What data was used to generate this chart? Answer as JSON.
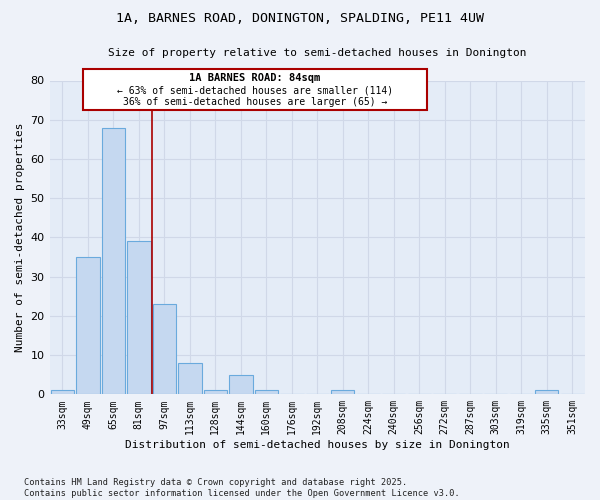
{
  "title1": "1A, BARNES ROAD, DONINGTON, SPALDING, PE11 4UW",
  "title2": "Size of property relative to semi-detached houses in Donington",
  "xlabel": "Distribution of semi-detached houses by size in Donington",
  "ylabel": "Number of semi-detached properties",
  "categories": [
    "33sqm",
    "49sqm",
    "65sqm",
    "81sqm",
    "97sqm",
    "113sqm",
    "128sqm",
    "144sqm",
    "160sqm",
    "176sqm",
    "192sqm",
    "208sqm",
    "224sqm",
    "240sqm",
    "256sqm",
    "272sqm",
    "287sqm",
    "303sqm",
    "319sqm",
    "335sqm",
    "351sqm"
  ],
  "values": [
    1,
    35,
    68,
    39,
    23,
    8,
    1,
    5,
    1,
    0,
    0,
    1,
    0,
    0,
    0,
    0,
    0,
    0,
    0,
    1,
    0
  ],
  "bar_color": "#c5d8f0",
  "bar_edge_color": "#6aaadd",
  "fig_bg_color": "#eef2f9",
  "axes_bg_color": "#e4ecf7",
  "grid_color": "#d0d8e8",
  "vline_x": 3.5,
  "vline_color": "#aa0000",
  "annotation_title": "1A BARNES ROAD: 84sqm",
  "annotation_line2": "← 63% of semi-detached houses are smaller (114)",
  "annotation_line3": "36% of semi-detached houses are larger (65) →",
  "annotation_box_color": "#aa0000",
  "ylim": [
    0,
    80
  ],
  "yticks": [
    0,
    10,
    20,
    30,
    40,
    50,
    60,
    70,
    80
  ],
  "footnote1": "Contains HM Land Registry data © Crown copyright and database right 2025.",
  "footnote2": "Contains public sector information licensed under the Open Government Licence v3.0."
}
